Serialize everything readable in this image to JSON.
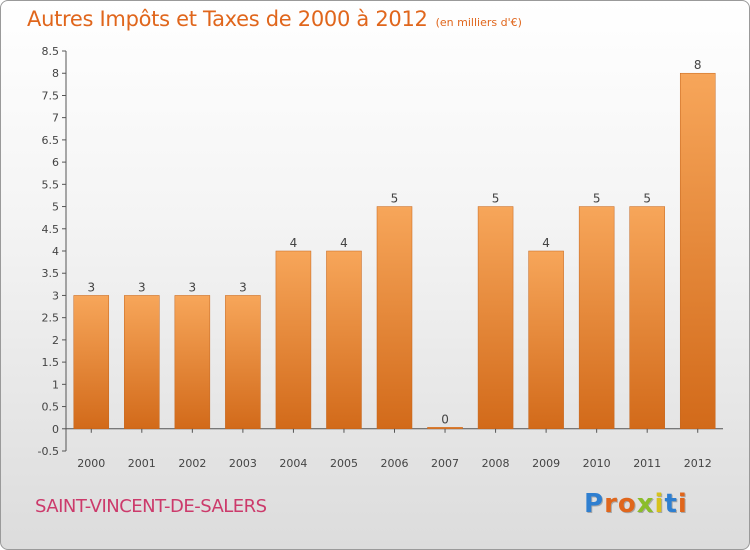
{
  "header": {
    "title": "Autres Impôts et Taxes de 2000 à 2012",
    "unit": "(en milliers d'€)"
  },
  "footer": {
    "commune": "SAINT-VINCENT-DE-SALERS",
    "logo_letters": [
      "P",
      "r",
      "o",
      "x",
      "i",
      "t",
      "i"
    ]
  },
  "colors": {
    "title": "#e0661c",
    "commune": "#cc3a6b",
    "bar_top": "#f7a65a",
    "bar_bottom": "#d26a1a",
    "logo": [
      "#2f7fd0",
      "#e0661c",
      "#e0661c",
      "#8bbd2a",
      "#d7c21c",
      "#2f7fd0",
      "#e0661c"
    ]
  },
  "chart_data": {
    "type": "bar",
    "categories": [
      "2000",
      "2001",
      "2002",
      "2003",
      "2004",
      "2005",
      "2006",
      "2007",
      "2008",
      "2009",
      "2010",
      "2011",
      "2012"
    ],
    "values": [
      3,
      3,
      3,
      3,
      4,
      4,
      5,
      0,
      5,
      4,
      5,
      5,
      8
    ],
    "data_labels": [
      "3",
      "3",
      "3",
      "3",
      "4",
      "4",
      "5",
      "0",
      "5",
      "4",
      "5",
      "5",
      "8"
    ],
    "y_ticks": [
      "-0.5",
      "0",
      "0.5",
      "1",
      "1.5",
      "2",
      "2.5",
      "3",
      "3.5",
      "4",
      "4.5",
      "5",
      "5.5",
      "6",
      "6.5",
      "7",
      "7.5",
      "8",
      "8.5"
    ],
    "ylim": [
      -0.5,
      8.5
    ],
    "grid": false,
    "legend": "none"
  }
}
